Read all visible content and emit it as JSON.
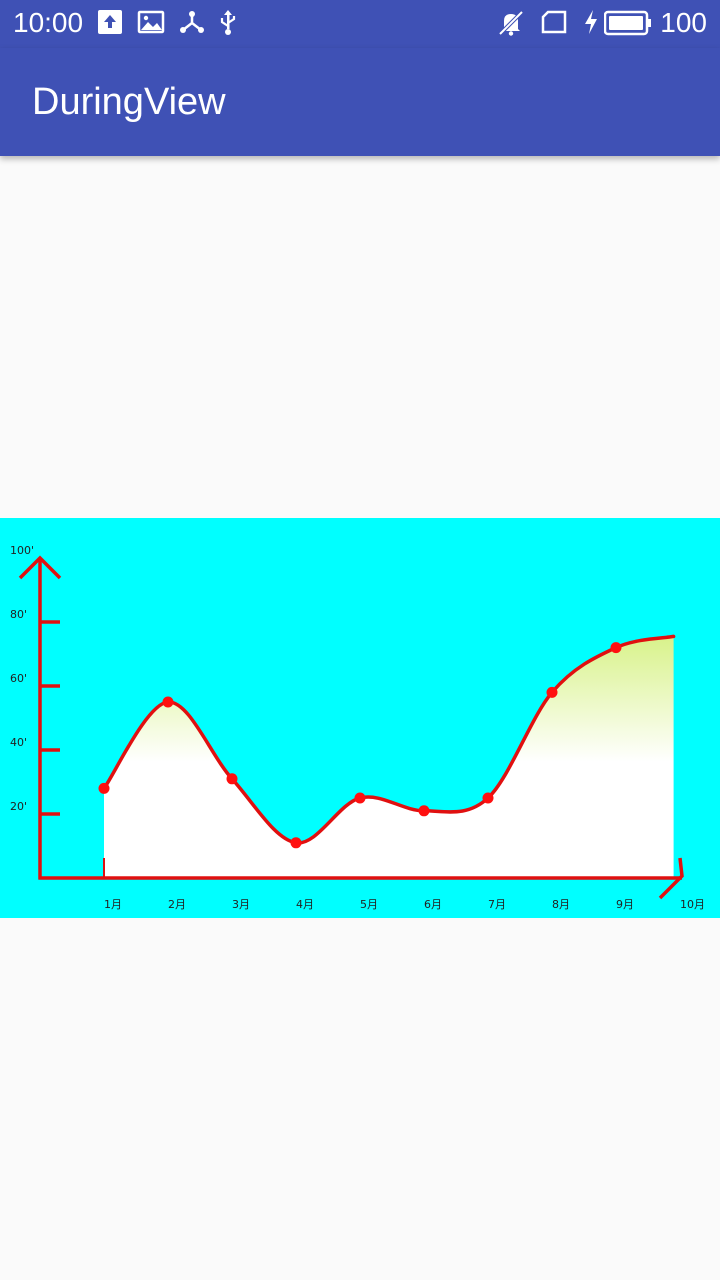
{
  "status_bar": {
    "time": "10:00",
    "battery_level": "100",
    "left_icons": [
      "upload-icon",
      "image-icon",
      "share-network-icon",
      "usb-icon"
    ],
    "right_icons": [
      "notifications-off-icon",
      "sim-card-icon",
      "charging-bolt-icon",
      "battery-full-icon"
    ],
    "background": "#3F51B5"
  },
  "app_bar": {
    "title": "DuringView",
    "background": "#3F51B5"
  },
  "chart_data": {
    "type": "area",
    "categories": [
      "1月",
      "2月",
      "3月",
      "4月",
      "5月",
      "6月",
      "7月",
      "8月",
      "9月"
    ],
    "x_tick_labels": [
      "1月",
      "2月",
      "3月",
      "4月",
      "5月",
      "6月",
      "7月",
      "8月",
      "9月",
      "10月"
    ],
    "y_tick_labels": [
      "100'",
      "80'",
      "60'",
      "40'",
      "20'"
    ],
    "y_ticks": [
      100,
      80,
      60,
      40,
      20
    ],
    "ylim": [
      0,
      100
    ],
    "series": [
      {
        "values": [
          28,
          55,
          31,
          11,
          25,
          21,
          25,
          58,
          72
        ],
        "end_value": 75.5
      }
    ],
    "smooth": true,
    "title": "",
    "xlabel": "",
    "ylabel": "",
    "colors": {
      "background": "#00FFFF",
      "axis": "#E01010",
      "line": "#E01010",
      "point": "#FF1010",
      "fill_top": "#D8F28A",
      "fill_bottom": "#FFFFFF"
    }
  }
}
